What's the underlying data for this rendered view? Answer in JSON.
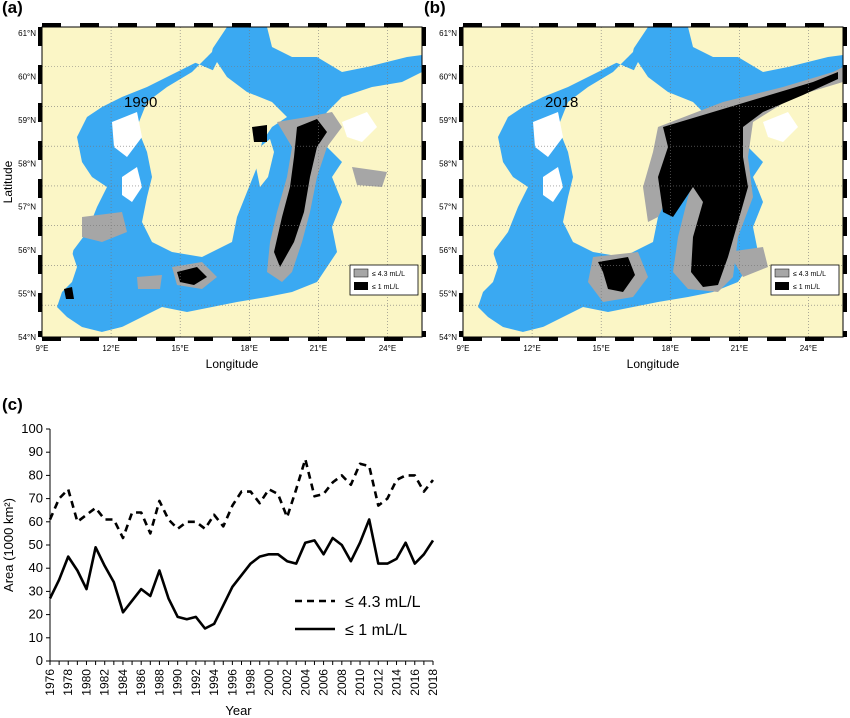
{
  "panels": {
    "a_label": "(a)",
    "b_label": "(b)",
    "c_label": "(c)"
  },
  "maps": [
    {
      "year": "1990",
      "lat_ticks": [
        "61°N",
        "60°N",
        "59°N",
        "58°N",
        "57°N",
        "56°N",
        "55°N",
        "54°N"
      ],
      "lon_ticks": [
        "9°E",
        "12°E",
        "15°E",
        "18°E",
        "21°E",
        "24°E"
      ],
      "xlabel": "Longitude",
      "ylabel": "Latitude",
      "legend": [
        "≤ 4.3 mL/L",
        "≤ 1 mL/L"
      ]
    },
    {
      "year": "2018",
      "lat_ticks": [
        "61°N",
        "60°N",
        "59°N",
        "58°N",
        "57°N",
        "56°N",
        "55°N",
        "54°N"
      ],
      "lon_ticks": [
        "9°E",
        "12°E",
        "15°E",
        "18°E",
        "21°E",
        "24°E"
      ],
      "xlabel": "Longitude",
      "ylabel": "",
      "legend": [
        "≤ 4.3 mL/L",
        "≤ 1 mL/L"
      ]
    }
  ],
  "colors": {
    "land": "#fbf6c6",
    "sea": "#3aa9f2",
    "hypoxic": "#a6a6a6",
    "anoxic": "#000000"
  },
  "chart_data": {
    "type": "line",
    "xlabel": "Year",
    "ylabel": "Area (1000 km²)",
    "ylim": [
      0,
      100
    ],
    "yticks": [
      0,
      10,
      20,
      30,
      40,
      50,
      60,
      70,
      80,
      90,
      100
    ],
    "xticks": [
      1976,
      1978,
      1980,
      1982,
      1984,
      1986,
      1988,
      1990,
      1992,
      1994,
      1996,
      1998,
      2000,
      2002,
      2004,
      2006,
      2008,
      2010,
      2012,
      2014,
      2016,
      2018
    ],
    "x": [
      1976,
      1977,
      1978,
      1979,
      1980,
      1981,
      1982,
      1983,
      1984,
      1985,
      1986,
      1987,
      1988,
      1989,
      1990,
      1991,
      1992,
      1993,
      1994,
      1995,
      1996,
      1997,
      1998,
      1999,
      2000,
      2001,
      2002,
      2003,
      2004,
      2005,
      2006,
      2007,
      2008,
      2009,
      2010,
      2011,
      2012,
      2013,
      2014,
      2015,
      2016,
      2017,
      2018
    ],
    "legend_position": "bottom-right",
    "series": [
      {
        "name": "≤ 4.3 mL/L",
        "style": "dashed",
        "values": [
          61,
          70,
          74,
          60,
          63,
          66,
          61,
          61,
          53,
          64,
          64,
          55,
          69,
          61,
          57,
          60,
          60,
          57,
          63,
          58,
          67,
          73,
          73,
          68,
          74,
          72,
          62,
          74,
          87,
          71,
          72,
          77,
          80,
          76,
          85,
          84,
          67,
          70,
          78,
          80,
          80,
          73,
          78
        ]
      },
      {
        "name": "≤ 1 mL/L",
        "style": "solid",
        "values": [
          27,
          35,
          45,
          39,
          31,
          49,
          41,
          34,
          21,
          26,
          31,
          28,
          39,
          27,
          19,
          18,
          19,
          14,
          16,
          24,
          32,
          37,
          42,
          45,
          46,
          46,
          43,
          42,
          51,
          52,
          46,
          53,
          50,
          43,
          51,
          61,
          42,
          42,
          44,
          51,
          42,
          46,
          52
        ]
      }
    ]
  }
}
